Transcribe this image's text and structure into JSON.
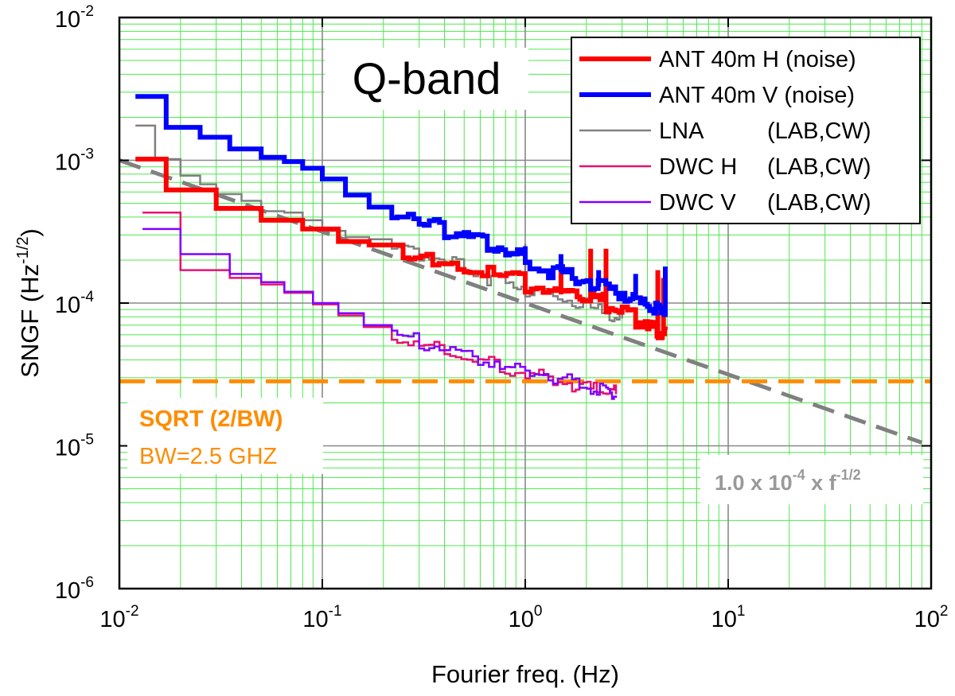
{
  "chart_data": {
    "type": "line",
    "scale": {
      "x": "log",
      "y": "log"
    },
    "xlim": [
      0.01,
      100
    ],
    "ylim": [
      1e-06,
      0.01
    ],
    "xlabel": "Fourier freq. (Hz)",
    "ylabel": {
      "main": "SNGF (Hz",
      "sup": "-1/2",
      "end": ")"
    },
    "x_ticks": [
      {
        "value": 0.01,
        "base": "10",
        "exp": "-2"
      },
      {
        "value": 0.1,
        "base": "10",
        "exp": "-1"
      },
      {
        "value": 1,
        "base": "10",
        "exp": "0"
      },
      {
        "value": 10,
        "base": "10",
        "exp": "1"
      },
      {
        "value": 100,
        "base": "10",
        "exp": "2"
      }
    ],
    "y_ticks": [
      {
        "value": 1e-06,
        "base": "10",
        "exp": "-6"
      },
      {
        "value": 1e-05,
        "base": "10",
        "exp": "-5"
      },
      {
        "value": 0.0001,
        "base": "10",
        "exp": "-4"
      },
      {
        "value": 0.001,
        "base": "10",
        "exp": "-3"
      },
      {
        "value": 0.01,
        "base": "10",
        "exp": "-2"
      }
    ],
    "grid": {
      "major": true,
      "minor": true,
      "major_color": "#888888",
      "minor_color": "#4de84d"
    },
    "band_label": "Q-band",
    "legend_position": "top-right",
    "series": [
      {
        "name": "ANT 40m H (noise)",
        "color": "#ff0000",
        "width": 6,
        "x": [
          0.012,
          0.017,
          0.03,
          0.05,
          0.08,
          0.12,
          0.17,
          0.25,
          0.35,
          0.5,
          0.7,
          1.0,
          1.4,
          1.8,
          2.1,
          2.5,
          3.0,
          3.5,
          4.0,
          4.4,
          4.7,
          4.9
        ],
        "y": [
          0.00102,
          0.00062,
          0.00046,
          0.00038,
          0.00033,
          0.00027,
          0.000255,
          0.00021,
          0.000175,
          0.000165,
          0.000148,
          0.000128,
          0.000115,
          0.000112,
          0.000105,
          9.5e-05,
          8.5e-05,
          7.5e-05,
          6.8e-05,
          6.2e-05,
          6e-05,
          6.5e-05
        ],
        "spikes": [
          {
            "x": 2.1,
            "y": 0.00024
          },
          {
            "x": 2.5,
            "y": 0.00024
          },
          {
            "x": 4.5,
            "y": 0.00017
          },
          {
            "x": 4.8,
            "y": 0.00015
          },
          {
            "x": 1.5,
            "y": 0.00018
          }
        ]
      },
      {
        "name": "ANT 40m V (noise)",
        "color": "#0000ff",
        "width": 6,
        "x": [
          0.012,
          0.017,
          0.025,
          0.035,
          0.05,
          0.065,
          0.08,
          0.1,
          0.13,
          0.17,
          0.22,
          0.3,
          0.4,
          0.5,
          0.65,
          0.8,
          1.0,
          1.3,
          1.7,
          2.1,
          2.6,
          3.1,
          3.6,
          4.1,
          4.6,
          4.9
        ],
        "y": [
          0.0028,
          0.0017,
          0.00145,
          0.0012,
          0.00105,
          0.00098,
          0.00088,
          0.00074,
          0.00057,
          0.00047,
          0.00042,
          0.00035,
          0.00031,
          0.00029,
          0.000245,
          0.000215,
          0.000185,
          0.000165,
          0.000145,
          0.00013,
          0.000118,
          0.000108,
          0.0001,
          9.2e-05,
          8.5e-05,
          8e-05
        ],
        "spikes": [
          {
            "x": 1.0,
            "y": 0.00025
          },
          {
            "x": 1.5,
            "y": 0.00022
          },
          {
            "x": 2.3,
            "y": 0.00017
          },
          {
            "x": 3.5,
            "y": 0.00016
          },
          {
            "x": 4.9,
            "y": 0.00018
          }
        ]
      },
      {
        "name": "LNA (LAB,CW)",
        "label_main": "LNA",
        "label_tag": "(LAB,CW)",
        "color": "#808080",
        "width": 2.5,
        "x": [
          0.012,
          0.015,
          0.02,
          0.025,
          0.03,
          0.04,
          0.05,
          0.065,
          0.08,
          0.1,
          0.13,
          0.17,
          0.22,
          0.3,
          0.4,
          0.5,
          0.65,
          0.8,
          1.0,
          1.3,
          1.7,
          2.1,
          2.6,
          3.0
        ],
        "y": [
          0.00175,
          0.00102,
          0.00078,
          0.00068,
          0.00058,
          0.00052,
          0.00044,
          0.00043,
          0.00038,
          0.00032,
          0.00029,
          0.00028,
          0.00024,
          0.000215,
          0.00019,
          0.00017,
          0.000145,
          0.000135,
          0.000118,
          0.000108,
          9.8e-05,
          9e-05,
          8.2e-05,
          7.8e-05
        ],
        "spikes": [
          {
            "x": 1.0,
            "y": 0.00026
          }
        ]
      },
      {
        "name": "DWC H (LAB,CW)",
        "label_main": "DWC H",
        "label_tag": "(LAB,CW)",
        "color": "#e81070",
        "width": 2.5,
        "x": [
          0.013,
          0.02,
          0.035,
          0.05,
          0.065,
          0.09,
          0.12,
          0.16,
          0.22,
          0.3,
          0.4,
          0.55,
          0.75,
          1.0,
          1.3,
          1.7,
          2.1,
          2.5,
          2.8
        ],
        "y": [
          0.00043,
          0.00017,
          0.00015,
          0.000135,
          0.000118,
          9.8e-05,
          8.2e-05,
          6.8e-05,
          5.6e-05,
          5e-05,
          4.4e-05,
          3.8e-05,
          3.4e-05,
          3.1e-05,
          2.8e-05,
          2.6e-05,
          2.5e-05,
          2.4e-05,
          2.3e-05
        ]
      },
      {
        "name": "DWC V (LAB,CW)",
        "label_main": "DWC V",
        "label_tag": "(LAB,CW)",
        "color": "#8000ff",
        "width": 2.5,
        "x": [
          0.013,
          0.02,
          0.035,
          0.05,
          0.065,
          0.09,
          0.12,
          0.16,
          0.22,
          0.3,
          0.4,
          0.55,
          0.75,
          1.0,
          1.3,
          1.7,
          2.1,
          2.5,
          2.8
        ],
        "y": [
          0.00033,
          0.00022,
          0.00016,
          0.00014,
          0.00012,
          0.0001,
          8.5e-05,
          7e-05,
          5.8e-05,
          5.1e-05,
          4.5e-05,
          3.9e-05,
          3.5e-05,
          3.2e-05,
          2.9e-05,
          2.7e-05,
          2.5e-05,
          2.35e-05,
          2.25e-05
        ]
      }
    ],
    "reference_lines": [
      {
        "kind": "power_law",
        "coef": 0.0001,
        "exponent": -0.5,
        "color": "#808080",
        "dash": "28 14",
        "width": 5
      },
      {
        "kind": "horizontal",
        "y": 2.83e-05,
        "color": "#ff8c00",
        "dash": "32 14",
        "width": 5
      }
    ],
    "annotations": {
      "sqrt_label": "SQRT (2/BW)",
      "bw_label": "BW=2.5 GHZ",
      "powerlaw_label": {
        "coef": "1.0 x 10",
        "coef_exp": "-4",
        "mid": " x f",
        "f_exp": "-1/2"
      },
      "sqrt_color": "#ff8c00",
      "powerlaw_color": "#999999"
    }
  }
}
